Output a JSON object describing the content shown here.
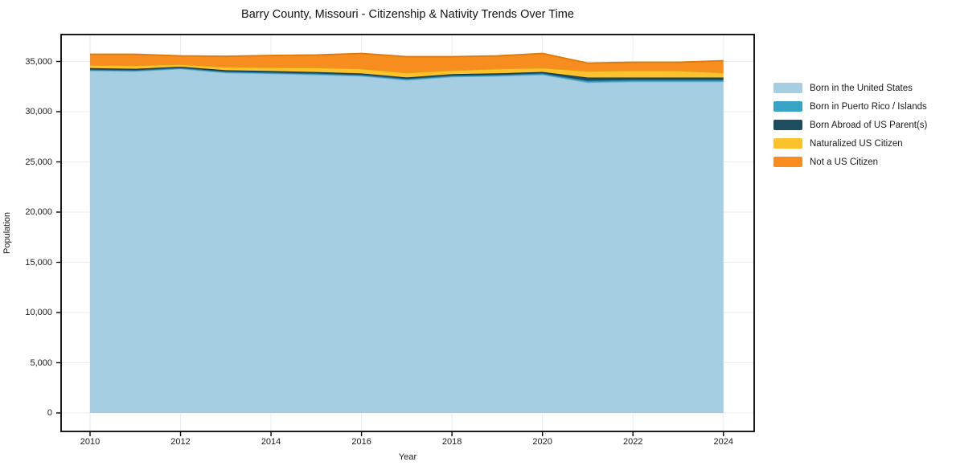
{
  "title": "Barry County, Missouri - Citizenship & Nativity Trends Over Time",
  "axes": {
    "x_label": "Year",
    "y_label": "Population",
    "x_tick_labels": [
      "2010",
      "2012",
      "2014",
      "2016",
      "2018",
      "2020",
      "2022",
      "2024"
    ],
    "y_tick_labels": [
      "0",
      "5,000",
      "10,000",
      "15,000",
      "20,000",
      "25,000",
      "30,000",
      "35,000"
    ],
    "y_tick_values": [
      0,
      5000,
      10000,
      15000,
      20000,
      25000,
      30000,
      35000
    ],
    "x_tick_values": [
      2010,
      2012,
      2014,
      2016,
      2018,
      2020,
      2022,
      2024
    ]
  },
  "colors": {
    "spine": "#000000",
    "grid": "#ebebeb",
    "background": "#ffffff",
    "text": "#1a1a1a"
  },
  "chart_data": {
    "type": "area",
    "stacked": true,
    "title": "Barry County, Missouri - Citizenship & Nativity Trends Over Time",
    "xlabel": "Year",
    "ylabel": "Population",
    "grid": true,
    "legend_position": "right",
    "xlim": [
      2009.36,
      2024.68
    ],
    "ylim": [
      -1840,
      37680
    ],
    "x": [
      2010,
      2011,
      2012,
      2013,
      2014,
      2015,
      2016,
      2017,
      2018,
      2019,
      2020,
      2021,
      2022,
      2023,
      2024
    ],
    "series": [
      {
        "name": "Born in the United States",
        "color": "#A6CEE3",
        "edge_color": "#6FAECF",
        "values": [
          34100,
          34040,
          34280,
          33900,
          33800,
          33700,
          33560,
          33160,
          33480,
          33560,
          33700,
          32920,
          33000,
          33000,
          33000
        ]
      },
      {
        "name": "Born in Puerto Rico / Islands",
        "color": "#38A3C4",
        "edge_color": "#2A87A5",
        "values": [
          80,
          80,
          70,
          80,
          90,
          90,
          100,
          100,
          100,
          100,
          100,
          160,
          150,
          150,
          150
        ]
      },
      {
        "name": "Born Abroad of US Parent(s)",
        "color": "#1E4D5F",
        "edge_color": "#143844",
        "values": [
          160,
          150,
          130,
          150,
          160,
          160,
          150,
          150,
          160,
          160,
          160,
          320,
          250,
          250,
          250
        ]
      },
      {
        "name": "Naturalized US Citizen",
        "color": "#FBC22D",
        "edge_color": "#E0A312",
        "values": [
          320,
          330,
          250,
          320,
          370,
          450,
          470,
          470,
          380,
          460,
          420,
          640,
          720,
          700,
          480
        ]
      },
      {
        "name": "Not a US Citizen",
        "color": "#F68D1E",
        "edge_color": "#DC790B",
        "values": [
          1060,
          1120,
          830,
          1070,
          1180,
          1250,
          1520,
          1600,
          1360,
          1280,
          1420,
          800,
          800,
          820,
          1200
        ]
      }
    ]
  }
}
